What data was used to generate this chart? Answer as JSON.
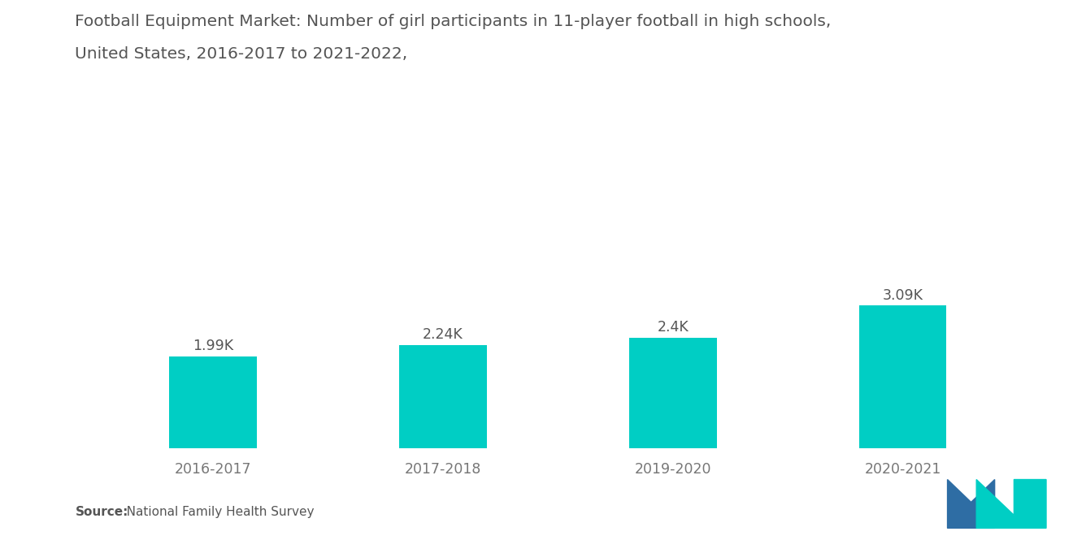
{
  "title_line1": "Football Equipment Market: Number of girl participants in 11-player football in high schools,",
  "title_line2": "United States, 2016-2017 to 2021-2022,",
  "categories": [
    "2016-2017",
    "2017-2018",
    "2019-2020",
    "2020-2021"
  ],
  "values": [
    1990,
    2240,
    2400,
    3090
  ],
  "labels": [
    "1.99K",
    "2.24K",
    "2.4K",
    "3.09K"
  ],
  "bar_color": "#00CEC4",
  "background_color": "#FFFFFF",
  "source_bold": "Source:",
  "source_rest": "   National Family Health Survey",
  "title_fontsize": 14.5,
  "label_fontsize": 12.5,
  "tick_fontsize": 12.5,
  "source_fontsize": 11,
  "ylim": [
    0,
    5500
  ],
  "bar_width": 0.38,
  "logo_blue": "#2E6DA4",
  "logo_teal": "#00CEC4",
  "title_color": "#555555",
  "label_color": "#555555",
  "tick_color": "#777777"
}
